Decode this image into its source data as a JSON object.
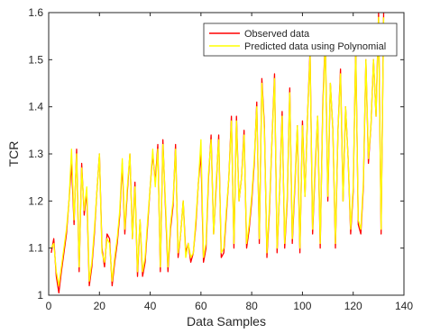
{
  "chart_data": {
    "type": "line",
    "xlabel": "Data Samples",
    "ylabel": "TCR",
    "xlim": [
      0,
      140
    ],
    "ylim": [
      1,
      1.6
    ],
    "xticks": [
      0,
      20,
      40,
      60,
      80,
      100,
      120,
      140
    ],
    "yticks": [
      1,
      1.1,
      1.2,
      1.3,
      1.4,
      1.5,
      1.6
    ],
    "xtick_labels": [
      "0",
      "20",
      "40",
      "60",
      "80",
      "100",
      "120",
      "140"
    ],
    "ytick_labels": [
      "1",
      "1.1",
      "1.2",
      "1.3",
      "1.4",
      "1.5",
      "1.6"
    ],
    "grid": false,
    "legend_position": "top-right",
    "series": [
      {
        "name": "Observed data",
        "color": "#ff0000",
        "x": [
          1,
          2,
          3,
          4,
          5,
          6,
          7,
          8,
          9,
          10,
          11,
          12,
          13,
          14,
          15,
          16,
          17,
          18,
          19,
          20,
          21,
          22,
          23,
          24,
          25,
          26,
          27,
          28,
          29,
          30,
          31,
          32,
          33,
          34,
          35,
          36,
          37,
          38,
          39,
          40,
          41,
          42,
          43,
          44,
          45,
          46,
          47,
          48,
          49,
          50,
          51,
          52,
          53,
          54,
          55,
          56,
          57,
          58,
          59,
          60,
          61,
          62,
          63,
          64,
          65,
          66,
          67,
          68,
          69,
          70,
          71,
          72,
          73,
          74,
          75,
          76,
          77,
          78,
          79,
          80,
          81,
          82,
          83,
          84,
          85,
          86,
          87,
          88,
          89,
          90,
          91,
          92,
          93,
          94,
          95,
          96,
          97,
          98,
          99,
          100,
          101,
          102,
          103,
          104,
          105,
          106,
          107,
          108,
          109,
          110,
          111,
          112,
          113,
          114,
          115,
          116,
          117,
          118,
          119,
          120,
          121,
          122,
          123,
          124,
          125,
          126,
          127,
          128,
          129,
          130,
          131,
          132
        ],
        "values": [
          1.09,
          1.12,
          1.04,
          1.005,
          1.05,
          1.09,
          1.13,
          1.2,
          1.28,
          1.15,
          1.31,
          1.05,
          1.28,
          1.17,
          1.22,
          1.02,
          1.06,
          1.13,
          1.22,
          1.3,
          1.1,
          1.06,
          1.13,
          1.12,
          1.02,
          1.07,
          1.11,
          1.17,
          1.28,
          1.13,
          1.22,
          1.3,
          1.12,
          1.24,
          1.04,
          1.16,
          1.04,
          1.07,
          1.15,
          1.23,
          1.3,
          1.24,
          1.32,
          1.05,
          1.33,
          1.19,
          1.05,
          1.14,
          1.19,
          1.32,
          1.08,
          1.13,
          1.2,
          1.09,
          1.11,
          1.07,
          1.09,
          1.15,
          1.24,
          1.3,
          1.07,
          1.1,
          1.25,
          1.34,
          1.13,
          1.23,
          1.34,
          1.08,
          1.09,
          1.17,
          1.25,
          1.38,
          1.1,
          1.38,
          1.2,
          1.25,
          1.35,
          1.1,
          1.14,
          1.2,
          1.28,
          1.41,
          1.11,
          1.46,
          1.36,
          1.08,
          1.18,
          1.33,
          1.47,
          1.09,
          1.22,
          1.39,
          1.1,
          1.2,
          1.44,
          1.11,
          1.23,
          1.36,
          1.09,
          1.37,
          1.21,
          1.38,
          1.52,
          1.13,
          1.27,
          1.38,
          1.1,
          1.4,
          1.55,
          1.2,
          1.45,
          1.35,
          1.1,
          1.35,
          1.48,
          1.2,
          1.4,
          1.29,
          1.13,
          1.22,
          1.53,
          1.15,
          1.13,
          1.23,
          1.5,
          1.28,
          1.36,
          1.5,
          1.38,
          1.6,
          1.13,
          1.6
        ],
        "x_display_step": 1
      },
      {
        "name": "Predicted data using Polynomial",
        "color": "#ffff00",
        "x": [
          1,
          2,
          3,
          4,
          5,
          6,
          7,
          8,
          9,
          10,
          11,
          12,
          13,
          14,
          15,
          16,
          17,
          18,
          19,
          20,
          21,
          22,
          23,
          24,
          25,
          26,
          27,
          28,
          29,
          30,
          31,
          32,
          33,
          34,
          35,
          36,
          37,
          38,
          39,
          40,
          41,
          42,
          43,
          44,
          45,
          46,
          47,
          48,
          49,
          50,
          51,
          52,
          53,
          54,
          55,
          56,
          57,
          58,
          59,
          60,
          61,
          62,
          63,
          64,
          65,
          66,
          67,
          68,
          69,
          70,
          71,
          72,
          73,
          74,
          75,
          76,
          77,
          78,
          79,
          80,
          81,
          82,
          83,
          84,
          85,
          86,
          87,
          88,
          89,
          90,
          91,
          92,
          93,
          94,
          95,
          96,
          97,
          98,
          99,
          100,
          101,
          102,
          103,
          104,
          105,
          106,
          107,
          108,
          109,
          110,
          111,
          112,
          113,
          114,
          115,
          116,
          117,
          118,
          119,
          120,
          121,
          122,
          123,
          124,
          125,
          126,
          127,
          128,
          129,
          130,
          131,
          132
        ],
        "values": [
          1.1,
          1.11,
          1.05,
          1.02,
          1.06,
          1.1,
          1.14,
          1.2,
          1.31,
          1.16,
          1.3,
          1.06,
          1.27,
          1.18,
          1.23,
          1.03,
          1.07,
          1.14,
          1.22,
          1.3,
          1.09,
          1.07,
          1.12,
          1.11,
          1.03,
          1.08,
          1.12,
          1.18,
          1.29,
          1.14,
          1.23,
          1.3,
          1.12,
          1.23,
          1.05,
          1.16,
          1.05,
          1.08,
          1.16,
          1.23,
          1.31,
          1.23,
          1.31,
          1.06,
          1.32,
          1.2,
          1.06,
          1.15,
          1.2,
          1.31,
          1.09,
          1.13,
          1.2,
          1.08,
          1.11,
          1.08,
          1.09,
          1.16,
          1.24,
          1.33,
          1.08,
          1.11,
          1.26,
          1.33,
          1.13,
          1.24,
          1.33,
          1.09,
          1.1,
          1.18,
          1.25,
          1.37,
          1.11,
          1.37,
          1.2,
          1.25,
          1.34,
          1.11,
          1.15,
          1.21,
          1.29,
          1.4,
          1.12,
          1.45,
          1.35,
          1.09,
          1.19,
          1.33,
          1.46,
          1.1,
          1.22,
          1.38,
          1.11,
          1.21,
          1.43,
          1.12,
          1.24,
          1.36,
          1.1,
          1.36,
          1.21,
          1.38,
          1.51,
          1.14,
          1.28,
          1.38,
          1.11,
          1.39,
          1.54,
          1.21,
          1.45,
          1.35,
          1.11,
          1.35,
          1.47,
          1.2,
          1.4,
          1.29,
          1.14,
          1.23,
          1.52,
          1.16,
          1.14,
          1.24,
          1.5,
          1.29,
          1.36,
          1.5,
          1.38,
          1.59,
          1.14,
          1.59
        ]
      }
    ]
  }
}
